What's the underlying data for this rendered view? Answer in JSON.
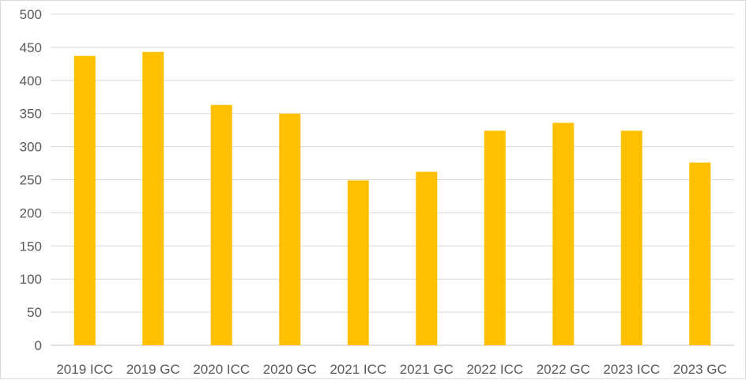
{
  "chart_data": {
    "type": "bar",
    "title": "",
    "xlabel": "",
    "ylabel": "",
    "categories": [
      "2019 ICC",
      "2019 GC",
      "2020 ICC",
      "2020 GC",
      "2021 ICC",
      "2021 GC",
      "2022 ICC",
      "2022 GC",
      "2023 ICC",
      "2023 GC"
    ],
    "values": [
      437,
      443,
      363,
      350,
      249,
      262,
      324,
      336,
      324,
      276
    ],
    "ylim": [
      0,
      500
    ],
    "yticks": [
      "0",
      "50",
      "100",
      "150",
      "200",
      "250",
      "300",
      "350",
      "400",
      "450",
      "500"
    ],
    "grid": true,
    "legend": "none",
    "bar_color": "#FFC000",
    "grid_color": "#D9D9D9"
  }
}
